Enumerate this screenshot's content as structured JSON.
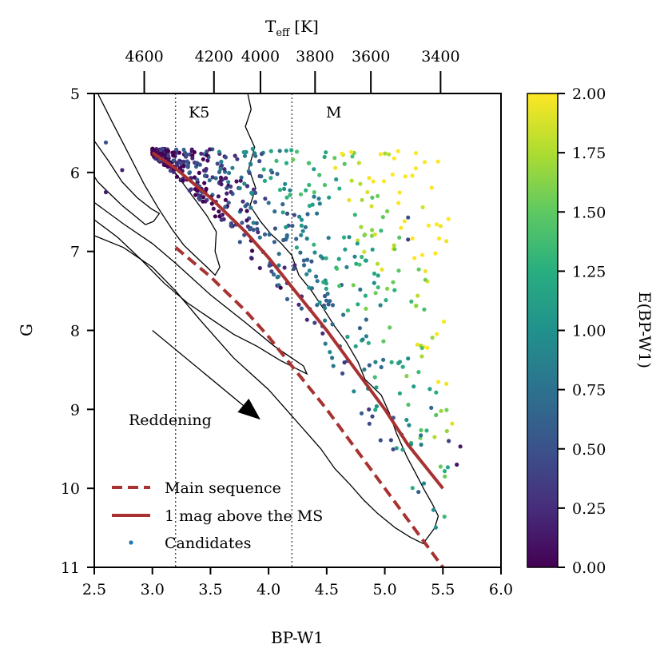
{
  "chart_data": {
    "type": "scatter",
    "xlabel": "BP-W1",
    "ylabel": "G",
    "top_label_main": "T",
    "top_label_sub": "eff",
    "top_label_unit": "[K]",
    "colorbar_label": "E(BP-W1)",
    "xlim": [
      2.5,
      6.0
    ],
    "ylim": [
      11,
      5
    ],
    "x_ticks": [
      "2.5",
      "3.0",
      "3.5",
      "4.0",
      "4.5",
      "5.0",
      "5.5",
      "6.0"
    ],
    "y_ticks": [
      "5",
      "6",
      "7",
      "8",
      "9",
      "10",
      "11"
    ],
    "top_ticks": [
      {
        "label": "4600",
        "bpw1": 2.93
      },
      {
        "label": "4200",
        "bpw1": 3.53
      },
      {
        "label": "4000",
        "bpw1": 3.93
      },
      {
        "label": "3800",
        "bpw1": 4.4
      },
      {
        "label": "3600",
        "bpw1": 4.88
      },
      {
        "label": "3400",
        "bpw1": 5.48
      }
    ],
    "colorbar": {
      "min": 0.0,
      "max": 2.0,
      "ticks": [
        "0.00",
        "0.25",
        "0.50",
        "0.75",
        "1.00",
        "1.25",
        "1.50",
        "1.75",
        "2.00"
      ],
      "colormap": "viridis"
    },
    "spectral_type_lines": [
      {
        "x": 3.2,
        "label": "K5"
      },
      {
        "x": 4.2,
        "label": "M"
      }
    ],
    "reddening_arrow": {
      "label": "Reddening",
      "from": [
        3.0,
        8.0
      ],
      "to": [
        3.93,
        9.13
      ]
    },
    "legend": {
      "position": "lower-left",
      "entries": [
        {
          "label": "Main sequence",
          "style": "dashed",
          "color": "#a83232"
        },
        {
          "label": "1 mag above the MS",
          "style": "solid",
          "color": "#a83232"
        },
        {
          "label": "Candidates",
          "style": "marker",
          "color": "#1f77b4"
        }
      ]
    },
    "series": [
      {
        "name": "Main sequence",
        "color": "#a83232",
        "style": "dashed",
        "points": [
          [
            3.2,
            6.95
          ],
          [
            3.5,
            7.32
          ],
          [
            3.8,
            7.75
          ],
          [
            4.0,
            8.08
          ],
          [
            4.2,
            8.45
          ],
          [
            4.5,
            9.0
          ],
          [
            4.8,
            9.6
          ],
          [
            5.0,
            10.0
          ],
          [
            5.3,
            10.6
          ],
          [
            5.5,
            11.0
          ]
        ]
      },
      {
        "name": "1 mag above the MS",
        "color": "#a83232",
        "style": "solid",
        "points": [
          [
            3.0,
            5.75
          ],
          [
            3.2,
            5.95
          ],
          [
            3.5,
            6.32
          ],
          [
            3.8,
            6.75
          ],
          [
            4.0,
            7.08
          ],
          [
            4.2,
            7.45
          ],
          [
            4.5,
            8.0
          ],
          [
            4.8,
            8.6
          ],
          [
            5.0,
            9.0
          ],
          [
            5.2,
            9.45
          ],
          [
            5.5,
            10.0
          ]
        ]
      }
    ],
    "contours": [
      {
        "name": "outer-contour",
        "points": [
          [
            3.82,
            5.0
          ],
          [
            3.85,
            5.2
          ],
          [
            3.8,
            5.42
          ],
          [
            3.88,
            5.68
          ],
          [
            3.83,
            5.95
          ],
          [
            3.89,
            6.2
          ],
          [
            3.84,
            6.42
          ],
          [
            3.93,
            6.62
          ],
          [
            4.02,
            6.78
          ],
          [
            4.11,
            6.9
          ],
          [
            4.2,
            7.05
          ],
          [
            4.26,
            7.3
          ],
          [
            4.37,
            7.5
          ],
          [
            4.47,
            7.72
          ],
          [
            4.57,
            7.95
          ],
          [
            4.67,
            8.15
          ],
          [
            4.77,
            8.4
          ],
          [
            4.83,
            8.62
          ],
          [
            4.97,
            8.82
          ],
          [
            5.04,
            9.05
          ],
          [
            5.1,
            9.3
          ],
          [
            5.19,
            9.6
          ],
          [
            5.27,
            9.82
          ],
          [
            5.34,
            10.02
          ],
          [
            5.41,
            10.2
          ],
          [
            5.46,
            10.35
          ],
          [
            5.43,
            10.5
          ],
          [
            5.37,
            10.62
          ],
          [
            5.33,
            10.7
          ],
          [
            5.22,
            10.62
          ],
          [
            5.09,
            10.5
          ],
          [
            4.94,
            10.32
          ],
          [
            4.82,
            10.15
          ],
          [
            4.7,
            9.95
          ],
          [
            4.57,
            9.75
          ],
          [
            4.45,
            9.5
          ],
          [
            4.3,
            9.25
          ],
          [
            4.15,
            9.0
          ],
          [
            4.0,
            8.75
          ],
          [
            3.85,
            8.55
          ],
          [
            3.7,
            8.35
          ],
          [
            3.55,
            8.1
          ],
          [
            3.4,
            7.85
          ],
          [
            3.2,
            7.5
          ],
          [
            3.0,
            7.2
          ],
          [
            2.75,
            6.95
          ],
          [
            2.5,
            6.8
          ]
        ]
      },
      {
        "name": "inner-contour",
        "points": [
          [
            2.5,
            6.38
          ],
          [
            2.75,
            6.65
          ],
          [
            3.0,
            6.9
          ],
          [
            3.2,
            7.15
          ],
          [
            3.5,
            7.55
          ],
          [
            3.8,
            7.9
          ],
          [
            4.05,
            8.2
          ],
          [
            4.2,
            8.35
          ],
          [
            4.3,
            8.45
          ],
          [
            4.33,
            8.55
          ],
          [
            4.26,
            8.5
          ],
          [
            4.1,
            8.38
          ],
          [
            3.9,
            8.2
          ],
          [
            3.7,
            8.05
          ],
          [
            3.5,
            7.85
          ],
          [
            3.3,
            7.65
          ],
          [
            3.1,
            7.4
          ],
          [
            2.9,
            7.1
          ],
          [
            2.7,
            6.82
          ],
          [
            2.5,
            6.6
          ]
        ]
      },
      {
        "name": "upper-left-contour",
        "points": [
          [
            2.5,
            5.6
          ],
          [
            2.62,
            5.85
          ],
          [
            2.74,
            6.12
          ],
          [
            2.87,
            6.32
          ],
          [
            2.99,
            6.46
          ],
          [
            3.06,
            6.52
          ],
          [
            3.01,
            6.62
          ],
          [
            2.94,
            6.66
          ],
          [
            2.85,
            6.55
          ],
          [
            2.74,
            6.42
          ],
          [
            2.62,
            6.25
          ],
          [
            2.53,
            6.12
          ],
          [
            2.5,
            6.05
          ]
        ]
      },
      {
        "name": "left-edge-contour",
        "points": [
          [
            2.53,
            5.0
          ],
          [
            2.65,
            5.35
          ],
          [
            2.79,
            5.75
          ],
          [
            2.93,
            6.15
          ],
          [
            3.05,
            6.45
          ],
          [
            3.17,
            6.72
          ],
          [
            3.27,
            6.92
          ],
          [
            3.37,
            7.06
          ],
          [
            3.47,
            7.2
          ],
          [
            3.54,
            7.3
          ],
          [
            3.58,
            7.2
          ],
          [
            3.54,
            7.0
          ],
          [
            3.55,
            6.75
          ],
          [
            3.47,
            6.55
          ],
          [
            3.37,
            6.35
          ],
          [
            3.22,
            6.05
          ],
          [
            3.12,
            5.85
          ]
        ]
      }
    ]
  }
}
